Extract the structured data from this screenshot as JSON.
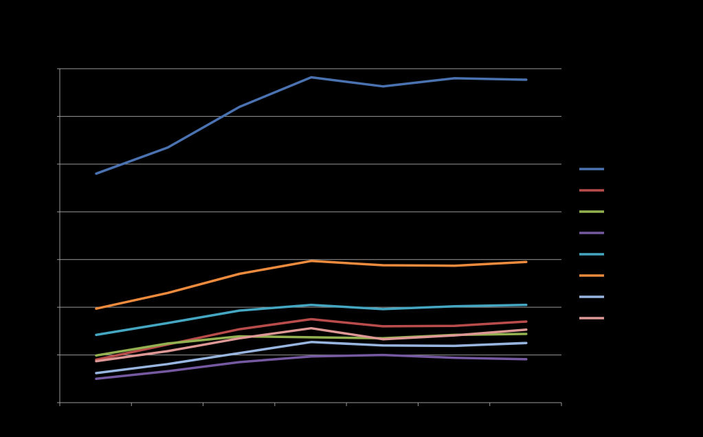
{
  "chart_data": {
    "type": "line",
    "title": "",
    "xlabel": "",
    "ylabel": "",
    "categories": [
      "",
      "",
      "",
      "",
      "",
      "",
      ""
    ],
    "ylim": [
      0,
      7
    ],
    "y_major_step": 1,
    "grid": true,
    "legend_position": "right",
    "series": [
      {
        "color": "#4a72b0",
        "values": [
          4.8,
          5.35,
          6.2,
          6.82,
          6.63,
          6.8,
          6.77
        ]
      },
      {
        "color": "#b84c4a",
        "values": [
          0.9,
          1.22,
          1.54,
          1.75,
          1.6,
          1.61,
          1.7
        ]
      },
      {
        "color": "#93b150",
        "values": [
          0.99,
          1.24,
          1.39,
          1.37,
          1.35,
          1.42,
          1.44
        ]
      },
      {
        "color": "#7458a0",
        "values": [
          0.5,
          0.66,
          0.85,
          0.97,
          1.0,
          0.94,
          0.91
        ]
      },
      {
        "color": "#45a6c2",
        "values": [
          1.42,
          1.67,
          1.93,
          2.05,
          1.96,
          2.02,
          2.05
        ]
      },
      {
        "color": "#ec8a3d",
        "values": [
          1.97,
          2.3,
          2.7,
          2.97,
          2.88,
          2.87,
          2.95
        ]
      },
      {
        "color": "#98b5e0",
        "values": [
          0.62,
          0.81,
          1.04,
          1.27,
          1.2,
          1.19,
          1.25
        ]
      },
      {
        "color": "#dd9794",
        "values": [
          0.87,
          1.08,
          1.35,
          1.56,
          1.33,
          1.41,
          1.53
        ]
      }
    ]
  }
}
